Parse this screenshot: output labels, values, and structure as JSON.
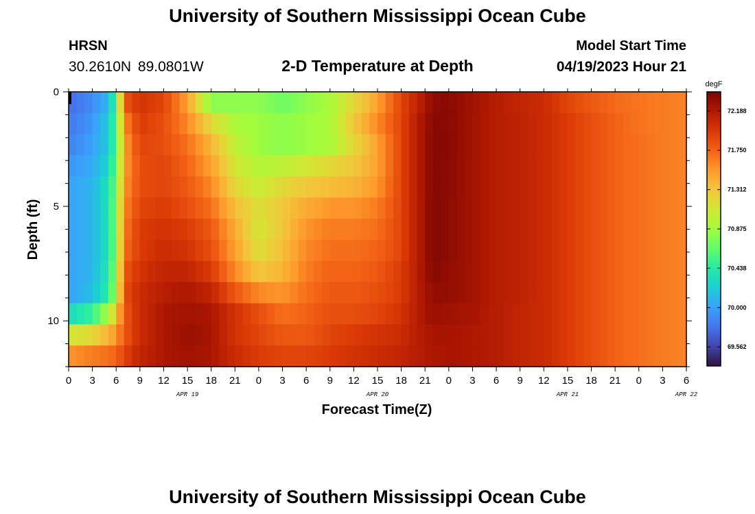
{
  "header": {
    "title": "University of Southern Mississippi Ocean Cube",
    "station": "HRSN",
    "coordinates": "30.2610N  89.0801W",
    "subtitle": "2-D Temperature at Depth",
    "model_start_label": "Model Start Time",
    "model_start_value": "04/19/2023 Hour 21"
  },
  "footer": {
    "title": "University of Southern Mississippi Ocean Cube"
  },
  "chart_data": {
    "type": "heatmap",
    "title": "2-D Temperature at Depth",
    "xlabel": "Forecast Time(Z)",
    "ylabel": "Depth (ft)",
    "x_ticks": [
      "0",
      "3",
      "6",
      "9",
      "12",
      "15",
      "18",
      "21",
      "0",
      "3",
      "6",
      "9",
      "12",
      "15",
      "18",
      "21",
      "0",
      "3",
      "6",
      "9",
      "12",
      "15",
      "18",
      "21",
      "0",
      "3",
      "6"
    ],
    "x_date_labels": [
      {
        "label": "APR 19",
        "tick_index": 5
      },
      {
        "label": "APR 20",
        "tick_index": 13
      },
      {
        "label": "APR 21",
        "tick_index": 21
      },
      {
        "label": "APR 22",
        "tick_index": 26
      }
    ],
    "x_range_hours": [
      0,
      78
    ],
    "y_ticks": [
      "0",
      "5",
      "10"
    ],
    "y_range_ft": [
      0,
      12
    ],
    "y_reversed": true,
    "colorbar": {
      "unit": "degF",
      "labels": [
        "72.188",
        "71.750",
        "71.312",
        "70.875",
        "70.438",
        "70.000",
        "69.562"
      ],
      "vmin": 69.35,
      "vmax": 72.4,
      "colors": [
        "#30123b",
        "#4145ab",
        "#4675ed",
        "#39a2fc",
        "#1bcfd4",
        "#24eca6",
        "#61fc6c",
        "#a4fc3b",
        "#d1e834",
        "#f3c63a",
        "#fe9b2d",
        "#f36315",
        "#d93806",
        "#b11901",
        "#7a0402"
      ]
    },
    "depth_levels_ft": [
      0,
      1,
      2,
      3,
      4,
      5,
      6,
      7,
      8,
      9,
      10,
      11,
      12
    ],
    "temperature_anchors": {
      "hours": [
        0,
        3,
        5,
        6,
        7,
        9,
        12,
        15,
        18,
        21,
        24,
        27,
        30,
        33,
        36,
        39,
        42,
        44,
        46,
        48,
        51,
        54,
        57,
        60,
        63,
        66,
        69,
        72,
        75,
        78
      ],
      "rows": [
        [
          69.75,
          69.9,
          70.1,
          70.6,
          71.8,
          72.0,
          71.9,
          71.5,
          70.8,
          70.8,
          70.8,
          70.7,
          70.8,
          70.9,
          71.2,
          71.5,
          71.9,
          72.1,
          72.32,
          72.34,
          72.25,
          72.15,
          72.1,
          72.05,
          71.9,
          71.8,
          71.72,
          71.68,
          71.65,
          71.62
        ],
        [
          69.8,
          69.95,
          70.2,
          70.6,
          71.6,
          71.95,
          71.85,
          71.6,
          71.2,
          70.9,
          70.85,
          70.8,
          70.85,
          70.9,
          71.3,
          71.6,
          71.9,
          72.15,
          72.35,
          72.34,
          72.24,
          72.15,
          72.12,
          72.05,
          71.95,
          71.85,
          71.75,
          71.68,
          71.65,
          71.62
        ],
        [
          69.85,
          70.0,
          70.2,
          70.6,
          71.5,
          71.9,
          71.85,
          71.7,
          71.4,
          71.0,
          70.85,
          70.8,
          70.85,
          70.9,
          71.2,
          71.5,
          71.9,
          72.15,
          72.36,
          72.34,
          72.24,
          72.15,
          72.12,
          72.05,
          71.95,
          71.85,
          71.75,
          71.7,
          71.65,
          71.62
        ],
        [
          69.95,
          70.05,
          70.25,
          70.7,
          71.5,
          71.85,
          71.9,
          71.75,
          71.5,
          71.1,
          70.95,
          71.0,
          71.1,
          71.2,
          71.3,
          71.5,
          71.9,
          72.15,
          72.36,
          72.33,
          72.24,
          72.15,
          72.12,
          72.05,
          71.95,
          71.85,
          71.75,
          71.7,
          71.65,
          71.62
        ],
        [
          70.0,
          70.1,
          70.35,
          70.75,
          71.55,
          71.85,
          71.9,
          71.8,
          71.6,
          71.2,
          71.05,
          71.2,
          71.3,
          71.35,
          71.4,
          71.55,
          71.9,
          72.15,
          72.36,
          72.33,
          72.24,
          72.15,
          72.12,
          72.05,
          71.95,
          71.85,
          71.75,
          71.7,
          71.65,
          71.62
        ],
        [
          70.0,
          70.1,
          70.35,
          70.8,
          71.6,
          71.9,
          71.95,
          71.85,
          71.7,
          71.35,
          71.15,
          71.3,
          71.45,
          71.55,
          71.55,
          71.65,
          71.9,
          72.15,
          72.37,
          72.32,
          72.24,
          72.15,
          72.12,
          72.05,
          71.95,
          71.85,
          71.75,
          71.7,
          71.65,
          71.62
        ],
        [
          70.0,
          70.1,
          70.35,
          70.8,
          71.65,
          71.95,
          72.0,
          71.95,
          71.8,
          71.45,
          71.1,
          71.3,
          71.55,
          71.65,
          71.65,
          71.7,
          71.9,
          72.15,
          72.37,
          72.32,
          72.24,
          72.15,
          72.12,
          72.05,
          71.95,
          71.85,
          71.75,
          71.7,
          71.65,
          71.62
        ],
        [
          70.0,
          70.1,
          70.35,
          70.8,
          71.7,
          71.95,
          72.05,
          72.0,
          71.85,
          71.5,
          71.15,
          71.35,
          71.6,
          71.7,
          71.7,
          71.75,
          71.9,
          72.15,
          72.37,
          72.32,
          72.24,
          72.15,
          72.12,
          72.05,
          71.95,
          71.85,
          71.75,
          71.7,
          71.65,
          71.62
        ],
        [
          70.0,
          70.1,
          70.4,
          70.85,
          71.8,
          72.0,
          72.1,
          72.1,
          71.95,
          71.6,
          71.3,
          71.4,
          71.65,
          71.75,
          71.75,
          71.8,
          71.95,
          72.15,
          72.35,
          72.3,
          72.24,
          72.15,
          72.12,
          72.05,
          71.95,
          71.85,
          71.75,
          71.7,
          71.65,
          71.62
        ],
        [
          70.0,
          70.15,
          70.45,
          70.9,
          71.85,
          72.05,
          72.15,
          72.2,
          72.1,
          71.8,
          71.6,
          71.55,
          71.7,
          71.8,
          71.8,
          71.85,
          71.95,
          72.15,
          72.3,
          72.3,
          72.24,
          72.15,
          72.12,
          72.05,
          71.95,
          71.85,
          71.75,
          71.7,
          71.65,
          71.62
        ],
        [
          70.3,
          70.5,
          70.9,
          71.3,
          71.8,
          72.05,
          72.2,
          72.25,
          72.2,
          72.0,
          71.85,
          71.7,
          71.75,
          71.85,
          71.85,
          71.9,
          72.0,
          72.15,
          72.28,
          72.25,
          72.22,
          72.15,
          72.1,
          72.05,
          71.95,
          71.85,
          71.75,
          71.7,
          71.65,
          71.62
        ],
        [
          71.1,
          71.2,
          71.4,
          71.55,
          71.8,
          72.05,
          72.2,
          72.28,
          72.22,
          72.0,
          71.9,
          71.8,
          71.8,
          71.9,
          71.95,
          72.0,
          72.05,
          72.15,
          72.22,
          72.22,
          72.2,
          72.15,
          72.1,
          72.05,
          71.95,
          71.85,
          71.75,
          71.7,
          71.65,
          71.62
        ],
        [
          71.55,
          71.65,
          71.7,
          71.75,
          71.9,
          72.1,
          72.2,
          72.25,
          72.2,
          72.05,
          71.95,
          71.9,
          71.9,
          71.95,
          72.0,
          72.05,
          72.1,
          72.15,
          72.2,
          72.22,
          72.2,
          72.15,
          72.1,
          72.05,
          71.95,
          71.85,
          71.75,
          71.7,
          71.65,
          71.62
        ]
      ]
    }
  }
}
